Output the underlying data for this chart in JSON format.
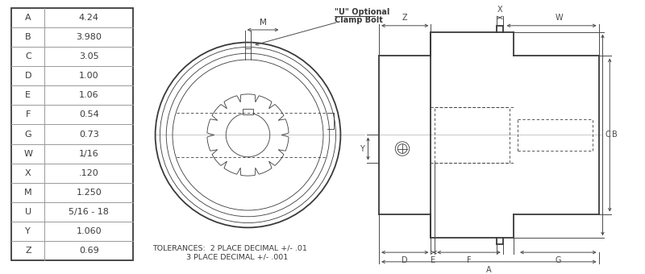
{
  "table_data": [
    [
      "A",
      "4.24"
    ],
    [
      "B",
      "3.980"
    ],
    [
      "C",
      "3.05"
    ],
    [
      "D",
      "1.00"
    ],
    [
      "E",
      "1.06"
    ],
    [
      "F",
      "0.54"
    ],
    [
      "G",
      "0.73"
    ],
    [
      "W",
      "1/16"
    ],
    [
      "X",
      ".120"
    ],
    [
      "M",
      "1.250"
    ],
    [
      "U",
      "5/16 - 18"
    ],
    [
      "Y",
      "1.060"
    ],
    [
      "Z",
      "0.69"
    ]
  ],
  "tolerance_line1": "TOLERANCES:  2 PLACE DECIMAL +/- .01",
  "tolerance_line2": "              3 PLACE DECIMAL +/- .001",
  "clamp_bolt_label_line1": "\"U\" Optional",
  "clamp_bolt_label_line2": "Clamp Bolt",
  "bg_color": "#ffffff",
  "line_color": "#3a3a3a",
  "dim_color": "#4a4a4a",
  "table_line_color": "#999999",
  "font_color": "#3a3a3a"
}
